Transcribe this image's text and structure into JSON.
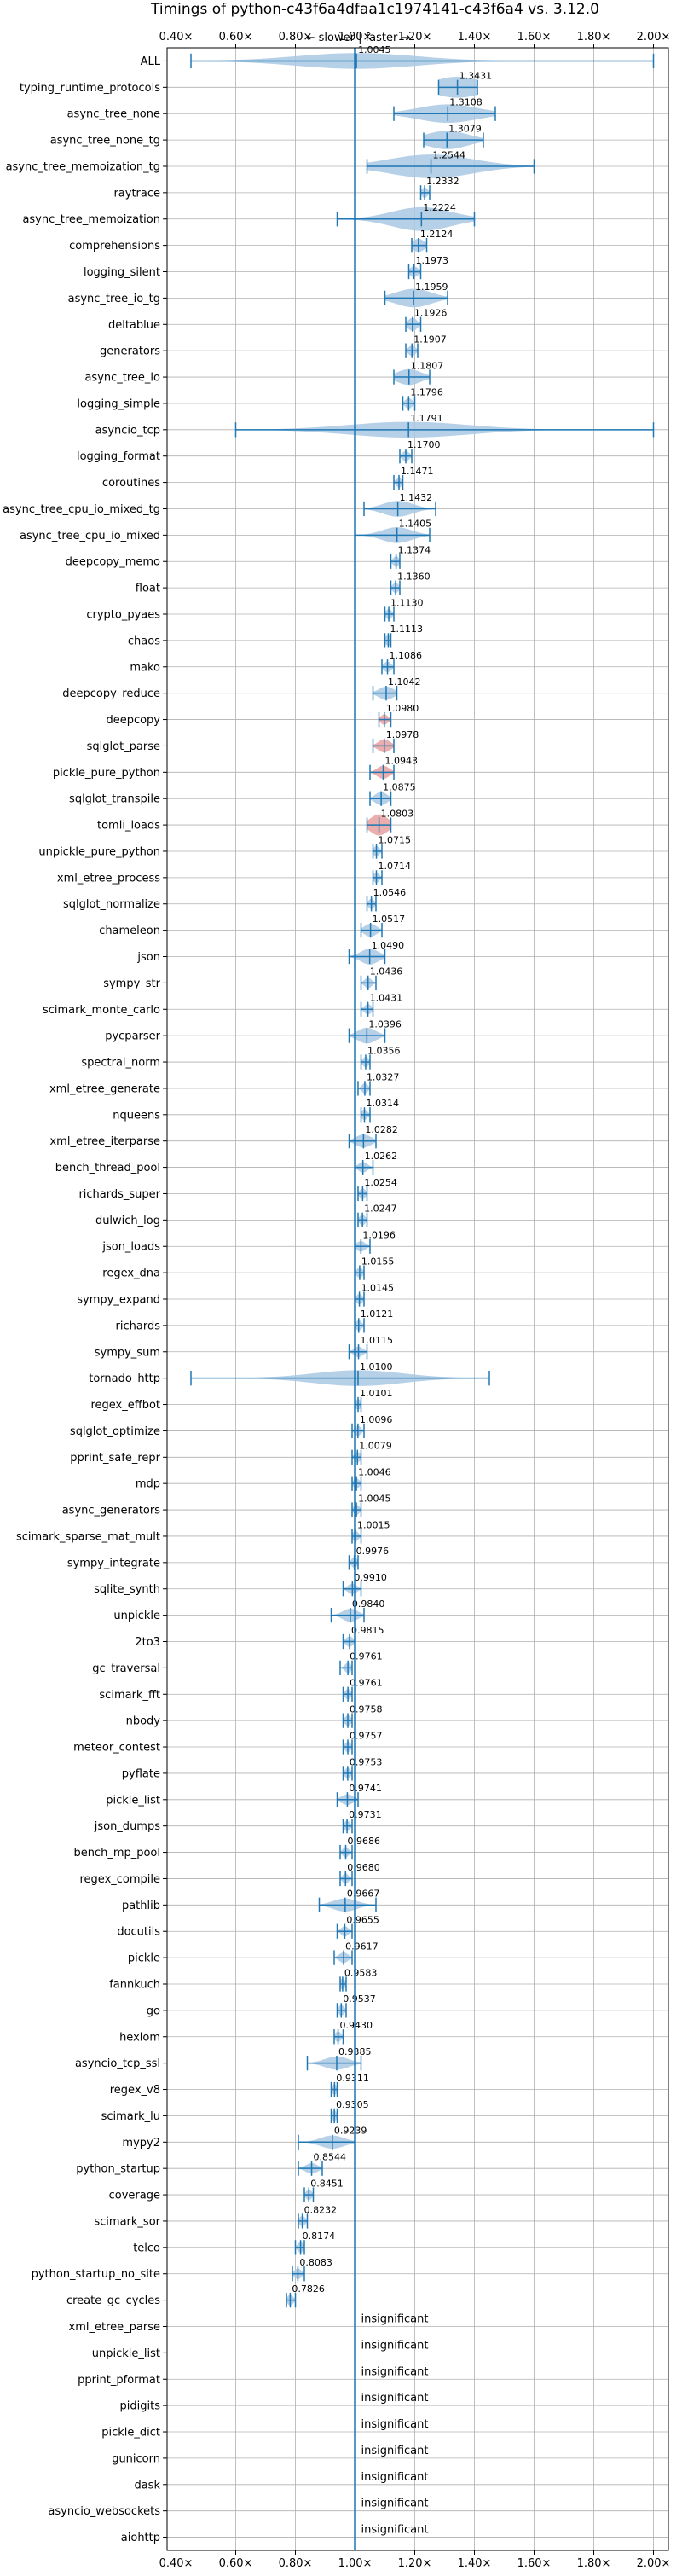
{
  "chart_data": {
    "type": "violin",
    "title": "Timings of python-c43f6a4dfaa1c1974141-c43f6a4 vs. 3.12.0",
    "direction_label": "← slower | faster →",
    "x_tick_labels": [
      "0.40×",
      "0.60×",
      "0.80×",
      "1.00×",
      "1.20×",
      "1.40×",
      "1.60×",
      "1.80×",
      "2.00×"
    ],
    "x_ticks": [
      0.4,
      0.6,
      0.8,
      1.0,
      1.2,
      1.4,
      1.6,
      1.8,
      2.0
    ],
    "xlim": [
      0.37,
      2.05
    ],
    "reference_line": 1.0,
    "grid": true,
    "insignificant_label": "insignificant",
    "colors": {
      "violin": "#a9c8e3",
      "line": "#1f77b4",
      "highlight": "#e8a0a0",
      "grid": "#b0b0b0"
    },
    "benchmarks": [
      {
        "name": "ALL",
        "median": 1.0045,
        "label": "1.0045",
        "min": 0.45,
        "max": 2.0,
        "spread": 0.2,
        "height": 0.6
      },
      {
        "name": "typing_runtime_protocols",
        "median": 1.3431,
        "label": "1.3431",
        "min": 1.28,
        "max": 1.41,
        "spread": 0.08,
        "height": 0.8
      },
      {
        "name": "async_tree_none",
        "median": 1.3108,
        "label": "1.3108",
        "min": 1.13,
        "max": 1.47,
        "spread": 0.1,
        "height": 0.7
      },
      {
        "name": "async_tree_none_tg",
        "median": 1.3079,
        "label": "1.3079",
        "min": 1.23,
        "max": 1.43,
        "spread": 0.07,
        "height": 0.7
      },
      {
        "name": "async_tree_memoization_tg",
        "median": 1.2544,
        "label": "1.2544",
        "min": 1.04,
        "max": 1.6,
        "spread": 0.14,
        "height": 0.9
      },
      {
        "name": "raytrace",
        "median": 1.2332,
        "label": "1.2332",
        "min": 1.22,
        "max": 1.25,
        "spread": 0.01,
        "height": 0.4
      },
      {
        "name": "async_tree_memoization",
        "median": 1.2224,
        "label": "1.2224",
        "min": 0.94,
        "max": 1.4,
        "spread": 0.1,
        "height": 0.9
      },
      {
        "name": "comprehensions",
        "median": 1.2124,
        "label": "1.2124",
        "min": 1.19,
        "max": 1.24,
        "spread": 0.02,
        "height": 0.5
      },
      {
        "name": "logging_silent",
        "median": 1.1973,
        "label": "1.1973",
        "min": 1.18,
        "max": 1.22,
        "spread": 0.015,
        "height": 0.4
      },
      {
        "name": "async_tree_io_tg",
        "median": 1.1959,
        "label": "1.1959",
        "min": 1.1,
        "max": 1.31,
        "spread": 0.06,
        "height": 0.7
      },
      {
        "name": "deltablue",
        "median": 1.1926,
        "label": "1.1926",
        "min": 1.17,
        "max": 1.22,
        "spread": 0.015,
        "height": 0.5
      },
      {
        "name": "generators",
        "median": 1.1907,
        "label": "1.1907",
        "min": 1.17,
        "max": 1.21,
        "spread": 0.012,
        "height": 0.4
      },
      {
        "name": "async_tree_io",
        "median": 1.1807,
        "label": "1.1807",
        "min": 1.13,
        "max": 1.25,
        "spread": 0.04,
        "height": 0.6
      },
      {
        "name": "logging_simple",
        "median": 1.1796,
        "label": "1.1796",
        "min": 1.16,
        "max": 1.2,
        "spread": 0.012,
        "height": 0.4
      },
      {
        "name": "asyncio_tcp",
        "median": 1.1791,
        "label": "1.1791",
        "min": 0.6,
        "max": 2.0,
        "spread": 0.2,
        "height": 0.6
      },
      {
        "name": "logging_format",
        "median": 1.17,
        "label": "1.1700",
        "min": 1.15,
        "max": 1.19,
        "spread": 0.012,
        "height": 0.4
      },
      {
        "name": "coroutines",
        "median": 1.1471,
        "label": "1.1471",
        "min": 1.13,
        "max": 1.16,
        "spread": 0.01,
        "height": 0.4
      },
      {
        "name": "async_tree_cpu_io_mixed_tg",
        "median": 1.1432,
        "label": "1.1432",
        "min": 1.03,
        "max": 1.27,
        "spread": 0.05,
        "height": 0.6
      },
      {
        "name": "async_tree_cpu_io_mixed",
        "median": 1.1405,
        "label": "1.1405",
        "min": 1.0,
        "max": 1.25,
        "spread": 0.05,
        "height": 0.6
      },
      {
        "name": "deepcopy_memo",
        "median": 1.1374,
        "label": "1.1374",
        "min": 1.12,
        "max": 1.15,
        "spread": 0.01,
        "height": 0.4
      },
      {
        "name": "float",
        "median": 1.136,
        "label": "1.1360",
        "min": 1.12,
        "max": 1.15,
        "spread": 0.01,
        "height": 0.4
      },
      {
        "name": "crypto_pyaes",
        "median": 1.113,
        "label": "1.1130",
        "min": 1.1,
        "max": 1.13,
        "spread": 0.01,
        "height": 0.4
      },
      {
        "name": "chaos",
        "median": 1.1113,
        "label": "1.1113",
        "min": 1.1,
        "max": 1.12,
        "spread": 0.01,
        "height": 0.4
      },
      {
        "name": "mako",
        "median": 1.1086,
        "label": "1.1086",
        "min": 1.09,
        "max": 1.13,
        "spread": 0.012,
        "height": 0.4
      },
      {
        "name": "deepcopy_reduce",
        "median": 1.1042,
        "label": "1.1042",
        "min": 1.06,
        "max": 1.14,
        "spread": 0.025,
        "height": 0.5
      },
      {
        "name": "deepcopy",
        "median": 1.098,
        "label": "1.0980",
        "min": 1.08,
        "max": 1.12,
        "spread": 0.012,
        "height": 0.4,
        "highlight": true
      },
      {
        "name": "sqlglot_parse",
        "median": 1.0978,
        "label": "1.0978",
        "min": 1.06,
        "max": 1.13,
        "spread": 0.02,
        "height": 0.5,
        "highlight": true
      },
      {
        "name": "pickle_pure_python",
        "median": 1.0943,
        "label": "1.0943",
        "min": 1.05,
        "max": 1.13,
        "spread": 0.02,
        "height": 0.5,
        "highlight": true
      },
      {
        "name": "sqlglot_transpile",
        "median": 1.0875,
        "label": "1.0875",
        "min": 1.05,
        "max": 1.12,
        "spread": 0.02,
        "height": 0.5
      },
      {
        "name": "tomli_loads",
        "median": 1.0803,
        "label": "1.0803",
        "min": 1.04,
        "max": 1.12,
        "spread": 0.03,
        "height": 0.8,
        "highlight": true
      },
      {
        "name": "unpickle_pure_python",
        "median": 1.0715,
        "label": "1.0715",
        "min": 1.06,
        "max": 1.09,
        "spread": 0.01,
        "height": 0.4
      },
      {
        "name": "xml_etree_process",
        "median": 1.0714,
        "label": "1.0714",
        "min": 1.06,
        "max": 1.09,
        "spread": 0.01,
        "height": 0.4
      },
      {
        "name": "sqlglot_normalize",
        "median": 1.0546,
        "label": "1.0546",
        "min": 1.04,
        "max": 1.07,
        "spread": 0.01,
        "height": 0.4
      },
      {
        "name": "chameleon",
        "median": 1.0517,
        "label": "1.0517",
        "min": 1.02,
        "max": 1.09,
        "spread": 0.02,
        "height": 0.5
      },
      {
        "name": "json",
        "median": 1.049,
        "label": "1.0490",
        "min": 0.98,
        "max": 1.1,
        "spread": 0.03,
        "height": 0.6
      },
      {
        "name": "sympy_str",
        "median": 1.0436,
        "label": "1.0436",
        "min": 1.02,
        "max": 1.07,
        "spread": 0.012,
        "height": 0.4
      },
      {
        "name": "scimark_monte_carlo",
        "median": 1.0431,
        "label": "1.0431",
        "min": 1.02,
        "max": 1.06,
        "spread": 0.012,
        "height": 0.4
      },
      {
        "name": "pycparser",
        "median": 1.0396,
        "label": "1.0396",
        "min": 0.98,
        "max": 1.1,
        "spread": 0.03,
        "height": 0.6
      },
      {
        "name": "spectral_norm",
        "median": 1.0356,
        "label": "1.0356",
        "min": 1.02,
        "max": 1.05,
        "spread": 0.01,
        "height": 0.4
      },
      {
        "name": "xml_etree_generate",
        "median": 1.0327,
        "label": "1.0327",
        "min": 1.01,
        "max": 1.05,
        "spread": 0.01,
        "height": 0.4
      },
      {
        "name": "nqueens",
        "median": 1.0314,
        "label": "1.0314",
        "min": 1.02,
        "max": 1.05,
        "spread": 0.01,
        "height": 0.4
      },
      {
        "name": "xml_etree_iterparse",
        "median": 1.0282,
        "label": "1.0282",
        "min": 0.98,
        "max": 1.07,
        "spread": 0.025,
        "height": 0.5
      },
      {
        "name": "bench_thread_pool",
        "median": 1.0262,
        "label": "1.0262",
        "min": 1.0,
        "max": 1.06,
        "spread": 0.015,
        "height": 0.4
      },
      {
        "name": "richards_super",
        "median": 1.0254,
        "label": "1.0254",
        "min": 1.01,
        "max": 1.04,
        "spread": 0.01,
        "height": 0.4
      },
      {
        "name": "dulwich_log",
        "median": 1.0247,
        "label": "1.0247",
        "min": 1.01,
        "max": 1.04,
        "spread": 0.01,
        "height": 0.4
      },
      {
        "name": "json_loads",
        "median": 1.0196,
        "label": "1.0196",
        "min": 1.0,
        "max": 1.05,
        "spread": 0.015,
        "height": 0.4
      },
      {
        "name": "regex_dna",
        "median": 1.0155,
        "label": "1.0155",
        "min": 1.0,
        "max": 1.03,
        "spread": 0.01,
        "height": 0.4
      },
      {
        "name": "sympy_expand",
        "median": 1.0145,
        "label": "1.0145",
        "min": 1.0,
        "max": 1.03,
        "spread": 0.01,
        "height": 0.4
      },
      {
        "name": "richards",
        "median": 1.0121,
        "label": "1.0121",
        "min": 1.0,
        "max": 1.03,
        "spread": 0.01,
        "height": 0.4
      },
      {
        "name": "sympy_sum",
        "median": 1.0115,
        "label": "1.0115",
        "min": 0.98,
        "max": 1.04,
        "spread": 0.015,
        "height": 0.4
      },
      {
        "name": "tornado_http",
        "median": 1.01,
        "label": "1.0100",
        "min": 0.45,
        "max": 1.45,
        "spread": 0.15,
        "height": 0.6
      },
      {
        "name": "regex_effbot",
        "median": 1.0101,
        "label": "1.0101",
        "min": 1.0,
        "max": 1.02,
        "spread": 0.01,
        "height": 0.4
      },
      {
        "name": "sqlglot_optimize",
        "median": 1.0096,
        "label": "1.0096",
        "min": 0.99,
        "max": 1.03,
        "spread": 0.01,
        "height": 0.4
      },
      {
        "name": "pprint_safe_repr",
        "median": 1.0079,
        "label": "1.0079",
        "min": 0.99,
        "max": 1.02,
        "spread": 0.01,
        "height": 0.4
      },
      {
        "name": "mdp",
        "median": 1.0046,
        "label": "1.0046",
        "min": 0.99,
        "max": 1.02,
        "spread": 0.01,
        "height": 0.4
      },
      {
        "name": "async_generators",
        "median": 1.0045,
        "label": "1.0045",
        "min": 0.99,
        "max": 1.02,
        "spread": 0.01,
        "height": 0.4
      },
      {
        "name": "scimark_sparse_mat_mult",
        "median": 1.0015,
        "label": "1.0015",
        "min": 0.99,
        "max": 1.02,
        "spread": 0.01,
        "height": 0.4
      },
      {
        "name": "sympy_integrate",
        "median": 0.9976,
        "label": "0.9976",
        "min": 0.98,
        "max": 1.01,
        "spread": 0.01,
        "height": 0.4
      },
      {
        "name": "sqlite_synth",
        "median": 0.991,
        "label": "0.9910",
        "min": 0.96,
        "max": 1.02,
        "spread": 0.015,
        "height": 0.4
      },
      {
        "name": "unpickle",
        "median": 0.984,
        "label": "0.9840",
        "min": 0.92,
        "max": 1.03,
        "spread": 0.025,
        "height": 0.5
      },
      {
        "name": "2to3",
        "median": 0.9815,
        "label": "0.9815",
        "min": 0.96,
        "max": 1.0,
        "spread": 0.012,
        "height": 0.4
      },
      {
        "name": "gc_traversal",
        "median": 0.9761,
        "label": "0.9761",
        "min": 0.95,
        "max": 0.99,
        "spread": 0.01,
        "height": 0.4
      },
      {
        "name": "scimark_fft",
        "median": 0.9761,
        "label": "0.9761",
        "min": 0.96,
        "max": 0.99,
        "spread": 0.01,
        "height": 0.4
      },
      {
        "name": "nbody",
        "median": 0.9758,
        "label": "0.9758",
        "min": 0.96,
        "max": 0.99,
        "spread": 0.01,
        "height": 0.4
      },
      {
        "name": "meteor_contest",
        "median": 0.9757,
        "label": "0.9757",
        "min": 0.96,
        "max": 0.99,
        "spread": 0.01,
        "height": 0.4
      },
      {
        "name": "pyflate",
        "median": 0.9753,
        "label": "0.9753",
        "min": 0.96,
        "max": 0.99,
        "spread": 0.01,
        "height": 0.4
      },
      {
        "name": "pickle_list",
        "median": 0.9741,
        "label": "0.9741",
        "min": 0.94,
        "max": 1.01,
        "spread": 0.02,
        "height": 0.4
      },
      {
        "name": "json_dumps",
        "median": 0.9731,
        "label": "0.9731",
        "min": 0.96,
        "max": 0.99,
        "spread": 0.01,
        "height": 0.4
      },
      {
        "name": "bench_mp_pool",
        "median": 0.9686,
        "label": "0.9686",
        "min": 0.95,
        "max": 0.99,
        "spread": 0.01,
        "height": 0.4
      },
      {
        "name": "regex_compile",
        "median": 0.968,
        "label": "0.9680",
        "min": 0.95,
        "max": 0.99,
        "spread": 0.01,
        "height": 0.4
      },
      {
        "name": "pathlib",
        "median": 0.9667,
        "label": "0.9667",
        "min": 0.88,
        "max": 1.07,
        "spread": 0.04,
        "height": 0.5
      },
      {
        "name": "docutils",
        "median": 0.9655,
        "label": "0.9655",
        "min": 0.94,
        "max": 0.99,
        "spread": 0.012,
        "height": 0.4
      },
      {
        "name": "pickle",
        "median": 0.9617,
        "label": "0.9617",
        "min": 0.93,
        "max": 0.99,
        "spread": 0.015,
        "height": 0.4
      },
      {
        "name": "fannkuch",
        "median": 0.9583,
        "label": "0.9583",
        "min": 0.95,
        "max": 0.97,
        "spread": 0.01,
        "height": 0.4
      },
      {
        "name": "go",
        "median": 0.9537,
        "label": "0.9537",
        "min": 0.94,
        "max": 0.97,
        "spread": 0.01,
        "height": 0.4
      },
      {
        "name": "hexiom",
        "median": 0.943,
        "label": "0.9430",
        "min": 0.93,
        "max": 0.96,
        "spread": 0.01,
        "height": 0.4
      },
      {
        "name": "asyncio_tcp_ssl",
        "median": 0.9385,
        "label": "0.9385",
        "min": 0.84,
        "max": 1.02,
        "spread": 0.04,
        "height": 0.5
      },
      {
        "name": "regex_v8",
        "median": 0.9311,
        "label": "0.9311",
        "min": 0.92,
        "max": 0.94,
        "spread": 0.008,
        "height": 0.4
      },
      {
        "name": "scimark_lu",
        "median": 0.9305,
        "label": "0.9305",
        "min": 0.92,
        "max": 0.94,
        "spread": 0.008,
        "height": 0.4
      },
      {
        "name": "mypy2",
        "median": 0.9239,
        "label": "0.9239",
        "min": 0.81,
        "max": 1.0,
        "spread": 0.04,
        "height": 0.5
      },
      {
        "name": "python_startup",
        "median": 0.8544,
        "label": "0.8544",
        "min": 0.81,
        "max": 0.89,
        "spread": 0.02,
        "height": 0.4
      },
      {
        "name": "coverage",
        "median": 0.8451,
        "label": "0.8451",
        "min": 0.83,
        "max": 0.86,
        "spread": 0.01,
        "height": 0.4
      },
      {
        "name": "scimark_sor",
        "median": 0.8232,
        "label": "0.8232",
        "min": 0.81,
        "max": 0.84,
        "spread": 0.01,
        "height": 0.4
      },
      {
        "name": "telco",
        "median": 0.8174,
        "label": "0.8174",
        "min": 0.8,
        "max": 0.83,
        "spread": 0.01,
        "height": 0.4
      },
      {
        "name": "python_startup_no_site",
        "median": 0.8083,
        "label": "0.8083",
        "min": 0.79,
        "max": 0.83,
        "spread": 0.012,
        "height": 0.4
      },
      {
        "name": "create_gc_cycles",
        "median": 0.7826,
        "label": "0.7826",
        "min": 0.77,
        "max": 0.8,
        "spread": 0.01,
        "height": 0.4
      },
      {
        "name": "xml_etree_parse",
        "insignificant": true
      },
      {
        "name": "unpickle_list",
        "insignificant": true
      },
      {
        "name": "pprint_pformat",
        "insignificant": true
      },
      {
        "name": "pidigits",
        "insignificant": true
      },
      {
        "name": "pickle_dict",
        "insignificant": true
      },
      {
        "name": "gunicorn",
        "insignificant": true
      },
      {
        "name": "dask",
        "insignificant": true
      },
      {
        "name": "asyncio_websockets",
        "insignificant": true
      },
      {
        "name": "aiohttp",
        "insignificant": true
      }
    ]
  }
}
